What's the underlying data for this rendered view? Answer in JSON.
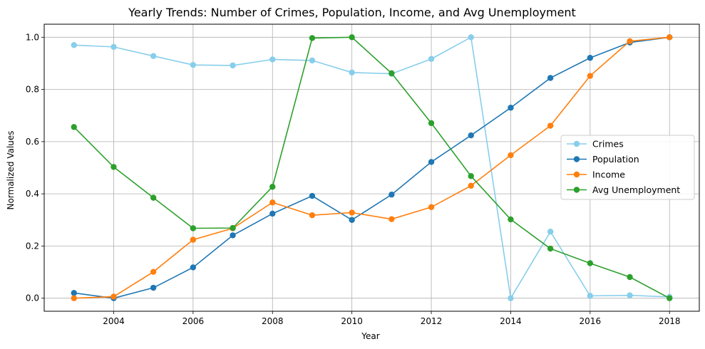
{
  "chart_data": {
    "type": "line",
    "title": "Yearly Trends: Number of Crimes, Population, Income, and Avg Unemployment",
    "xlabel": "Year",
    "ylabel": "Normalized Values",
    "x": [
      2003,
      2004,
      2005,
      2006,
      2007,
      2008,
      2009,
      2010,
      2011,
      2012,
      2013,
      2014,
      2015,
      2016,
      2017,
      2018
    ],
    "xlim": [
      2002.25,
      2018.75
    ],
    "ylim": [
      -0.05,
      1.05
    ],
    "xticks": [
      2004,
      2006,
      2008,
      2010,
      2012,
      2014,
      2016,
      2018
    ],
    "yticks": [
      0.0,
      0.2,
      0.4,
      0.6,
      0.8,
      1.0
    ],
    "xtick_labels": [
      "2004",
      "2006",
      "2008",
      "2010",
      "2012",
      "2014",
      "2016",
      "2018"
    ],
    "ytick_labels": [
      "0.0",
      "0.2",
      "0.4",
      "0.6",
      "0.8",
      "1.0"
    ],
    "grid": true,
    "legend_position": "center-right",
    "series": [
      {
        "name": "Crimes",
        "color": "#87ceeb",
        "values": [
          0.97,
          0.963,
          0.928,
          0.894,
          0.892,
          0.915,
          0.911,
          0.865,
          0.86,
          0.917,
          1.0,
          0.0,
          0.255,
          0.009,
          0.011,
          0.005
        ]
      },
      {
        "name": "Population",
        "color": "#1f77b4",
        "values": [
          0.02,
          0.0,
          0.04,
          0.118,
          0.241,
          0.324,
          0.392,
          0.3,
          0.397,
          0.522,
          0.624,
          0.73,
          0.844,
          0.921,
          0.98,
          1.0
        ]
      },
      {
        "name": "Income",
        "color": "#ff7f0e",
        "values": [
          0.0,
          0.006,
          0.101,
          0.224,
          0.268,
          0.367,
          0.318,
          0.328,
          0.303,
          0.349,
          0.431,
          0.548,
          0.661,
          0.852,
          0.985,
          1.0
        ]
      },
      {
        "name": "Avg Unemployment",
        "color": "#2ca02c",
        "values": [
          0.656,
          0.503,
          0.385,
          0.268,
          0.269,
          0.427,
          0.997,
          1.0,
          0.862,
          0.671,
          0.468,
          0.302,
          0.19,
          0.134,
          0.081,
          0.0
        ]
      }
    ]
  }
}
